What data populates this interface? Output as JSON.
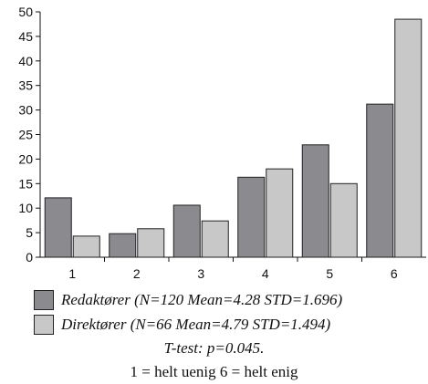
{
  "chart_data": {
    "type": "bar",
    "categories": [
      "1",
      "2",
      "3",
      "4",
      "5",
      "6"
    ],
    "series": [
      {
        "name": "Redaktører (N=120 Mean=4.28 STD=1.696)",
        "values": [
          12.1,
          4.8,
          10.6,
          16.3,
          22.9,
          31.2
        ],
        "color": "#8a8a8f"
      },
      {
        "name": "Direktører (N=66 Mean=4.79 STD=1.494)",
        "values": [
          4.3,
          5.8,
          7.4,
          18.0,
          15.0,
          48.5
        ],
        "color": "#c8c8c8"
      }
    ],
    "yticks": [
      0,
      5,
      10,
      15,
      20,
      25,
      30,
      35,
      40,
      45,
      50
    ],
    "ylim": [
      0,
      50
    ],
    "grid": false,
    "legend_position": "bottom",
    "notes": [
      "T-test: p=0.045.",
      "1 = helt uenig 6 = helt enig"
    ]
  }
}
